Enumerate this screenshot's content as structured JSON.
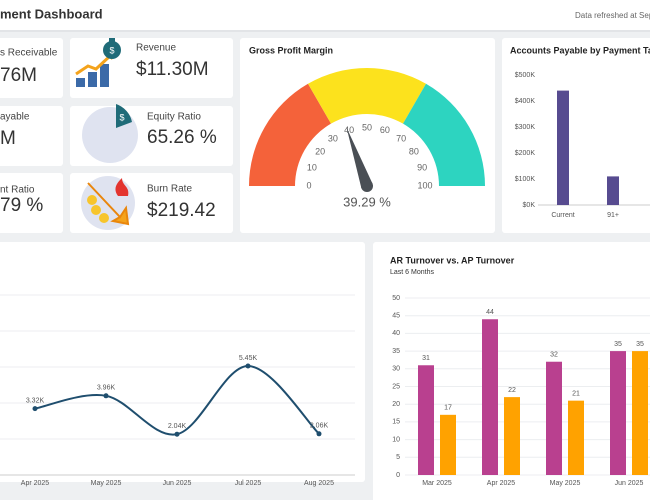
{
  "header": {
    "title": "ment Dashboard",
    "refreshed": "Data refreshed at Sep"
  },
  "kpis": [
    {
      "label": "s Receivable",
      "value": "76M"
    },
    {
      "label": "ayable",
      "value": "M"
    },
    {
      "label": "nt Ratio",
      "value": "79 %"
    },
    {
      "label": "Revenue",
      "value": "$11.30M"
    },
    {
      "label": "Equity Ratio",
      "value": "65.26 %"
    },
    {
      "label": "Burn Rate",
      "value": "$219.42"
    }
  ],
  "chart_data": [
    {
      "type": "gauge",
      "title": "Gross Profit Margin",
      "value": 39.29,
      "value_label": "39.29 %",
      "lim": [
        0,
        100
      ],
      "ticks": [
        0,
        10,
        20,
        30,
        40,
        50,
        60,
        70,
        80,
        90,
        100
      ],
      "colors": [
        "#f4623a",
        "#fce21d",
        "#2dd4c0"
      ]
    },
    {
      "type": "bar",
      "title": "Accounts Payable by Payment Targ",
      "categories": [
        "Current",
        "91+"
      ],
      "values": [
        440000,
        110000
      ],
      "color": "#574b90",
      "ylim": [
        0,
        500000
      ],
      "yticks": [
        {
          "value": 0,
          "label": "$0K"
        },
        {
          "value": 100000,
          "label": "$100K"
        },
        {
          "value": 200000,
          "label": "$200K"
        },
        {
          "value": 300000,
          "label": "$300K"
        },
        {
          "value": 400000,
          "label": "$400K"
        },
        {
          "value": 500000,
          "label": "$500K"
        }
      ],
      "grid": false
    },
    {
      "type": "line",
      "categories": [
        "Apr 2025",
        "May 2025",
        "Jun 2025",
        "Jul 2025",
        "Aug 2025"
      ],
      "values": [
        3320,
        3960,
        2040,
        5450,
        2060
      ],
      "value_labels": [
        "3.32K",
        "3.96K",
        "2.04K",
        "5.45K",
        "2.06K"
      ],
      "color": "#1f4e6e",
      "ylim": [
        0,
        9000
      ],
      "grid": true
    },
    {
      "type": "grouped_bar",
      "title": "AR Turnover vs. AP Turnover",
      "subtitle": "Last 6 Months",
      "categories": [
        "Mar 2025",
        "Apr 2025",
        "May 2025",
        "Jun 2025"
      ],
      "series": [
        {
          "color": "#b9408f",
          "values": [
            31,
            44,
            32,
            35
          ]
        },
        {
          "color": "#ffa200",
          "values": [
            17,
            22,
            21,
            35
          ]
        }
      ],
      "ylim": [
        0,
        50
      ],
      "yticks": [
        0,
        5,
        10,
        15,
        20,
        25,
        30,
        35,
        40,
        45,
        50
      ],
      "grid": true
    }
  ]
}
